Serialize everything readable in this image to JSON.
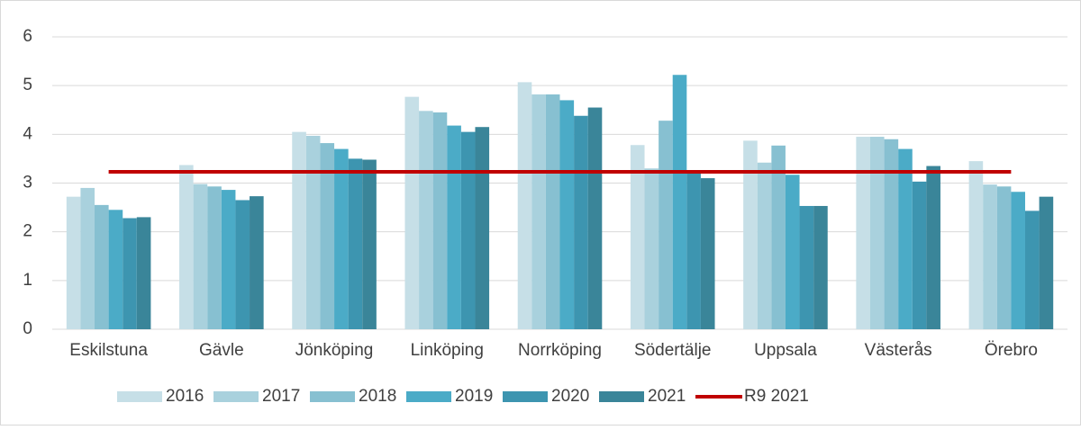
{
  "chart_data": {
    "type": "bar",
    "categories": [
      "Eskilstuna",
      "Gävle",
      "Jönköping",
      "Linköping",
      "Norrköping",
      "Södertälje",
      "Uppsala",
      "Västerås",
      "Örebro"
    ],
    "series": [
      {
        "name": "2016",
        "color": "#c6dfe7",
        "values": [
          2.72,
          3.37,
          4.05,
          4.77,
          5.07,
          3.78,
          3.87,
          3.95,
          3.45
        ]
      },
      {
        "name": "2017",
        "color": "#a9d1dd",
        "values": [
          2.9,
          2.98,
          3.97,
          4.48,
          4.82,
          3.3,
          3.42,
          3.95,
          2.97
        ]
      },
      {
        "name": "2018",
        "color": "#87c0d1",
        "values": [
          2.55,
          2.93,
          3.82,
          4.45,
          4.82,
          4.28,
          3.77,
          3.9,
          2.93
        ]
      },
      {
        "name": "2019",
        "color": "#4babc7",
        "values": [
          2.45,
          2.86,
          3.7,
          4.18,
          4.7,
          5.22,
          3.17,
          3.7,
          2.82
        ]
      },
      {
        "name": "2020",
        "color": "#3d95b0",
        "values": [
          2.28,
          2.65,
          3.5,
          4.05,
          4.38,
          3.2,
          2.53,
          3.03,
          2.43
        ]
      },
      {
        "name": "2021",
        "color": "#3a8599",
        "values": [
          2.3,
          2.73,
          3.48,
          4.15,
          4.55,
          3.1,
          2.53,
          3.35,
          2.72
        ]
      },
      {
        "name": "R9 2021",
        "color": "#c00000",
        "type": "line",
        "values": [
          3.23,
          3.23,
          3.23,
          3.23,
          3.23,
          3.23,
          3.23,
          3.23,
          3.23
        ]
      }
    ],
    "ylim": [
      0,
      6
    ],
    "yticks": [
      0,
      1,
      2,
      3,
      4,
      5,
      6
    ],
    "grid": true,
    "legend": "bottom"
  }
}
